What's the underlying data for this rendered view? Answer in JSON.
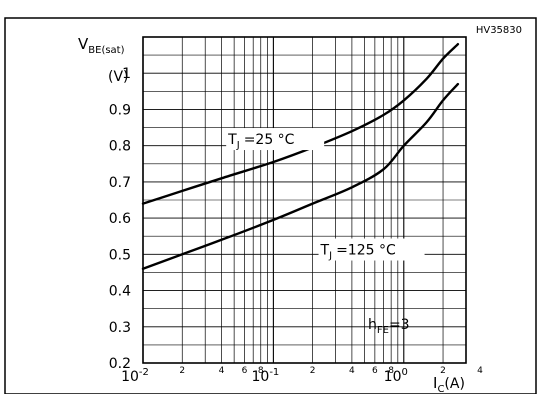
{
  "chart_data": {
    "type": "line",
    "code": "HV35830",
    "ylabel_main": "V",
    "ylabel_sub": "BE(sat)",
    "yunit": "(V)",
    "xlabel_main": "I",
    "xlabel_sub": "C",
    "xunit": "(A)",
    "xscale": "log",
    "xlim": [
      0.01,
      3
    ],
    "ylim": [
      0.2,
      1.1
    ],
    "grid": true,
    "yticks": [
      {
        "v": 0.2,
        "t": "0.2"
      },
      {
        "v": 0.3,
        "t": "0.3"
      },
      {
        "v": 0.4,
        "t": "0.4"
      },
      {
        "v": 0.5,
        "t": "0.5"
      },
      {
        "v": 0.6,
        "t": "0.6"
      },
      {
        "v": 0.7,
        "t": "0.7"
      },
      {
        "v": 0.8,
        "t": "0.8"
      },
      {
        "v": 0.9,
        "t": "0.9"
      },
      {
        "v": 1.0,
        "t": "1"
      }
    ],
    "xdecades": [
      {
        "v": 0.01,
        "base": "10",
        "exp": "-2"
      },
      {
        "v": 0.1,
        "base": "10",
        "exp": "-1"
      },
      {
        "v": 1,
        "base": "10",
        "exp": "0"
      }
    ],
    "xminor_labels": [
      {
        "v": 0.02,
        "t": "2"
      },
      {
        "v": 0.04,
        "t": "4"
      },
      {
        "v": 0.06,
        "t": "6"
      },
      {
        "v": 0.08,
        "t": "8"
      },
      {
        "v": 0.2,
        "t": "2"
      },
      {
        "v": 0.4,
        "t": "4"
      },
      {
        "v": 0.6,
        "t": "6"
      },
      {
        "v": 0.8,
        "t": "8"
      },
      {
        "v": 2,
        "t": "2"
      }
    ],
    "xtail_label": {
      "v": 4,
      "t": "4"
    },
    "series": [
      {
        "name": "TJ = 25 °C",
        "label_main": "T",
        "label_sub": "J",
        "label_rest": "=25 °C",
        "x": [
          0.01,
          0.02,
          0.04,
          0.1,
          0.2,
          0.4,
          0.7,
          1.0,
          1.5,
          2.0,
          2.6
        ],
        "y": [
          0.64,
          0.675,
          0.71,
          0.755,
          0.795,
          0.84,
          0.885,
          0.925,
          0.985,
          1.04,
          1.08
        ]
      },
      {
        "name": "TJ = 125 °C",
        "label_main": "T",
        "label_sub": "J",
        "label_rest": "=125 °C",
        "x": [
          0.01,
          0.02,
          0.04,
          0.1,
          0.2,
          0.4,
          0.7,
          1.0,
          1.5,
          2.0,
          2.6
        ],
        "y": [
          0.46,
          0.5,
          0.54,
          0.595,
          0.64,
          0.685,
          0.735,
          0.8,
          0.865,
          0.925,
          0.97
        ]
      }
    ],
    "annotation": {
      "main": "h",
      "sub": "FE",
      "rest": "=3"
    }
  }
}
